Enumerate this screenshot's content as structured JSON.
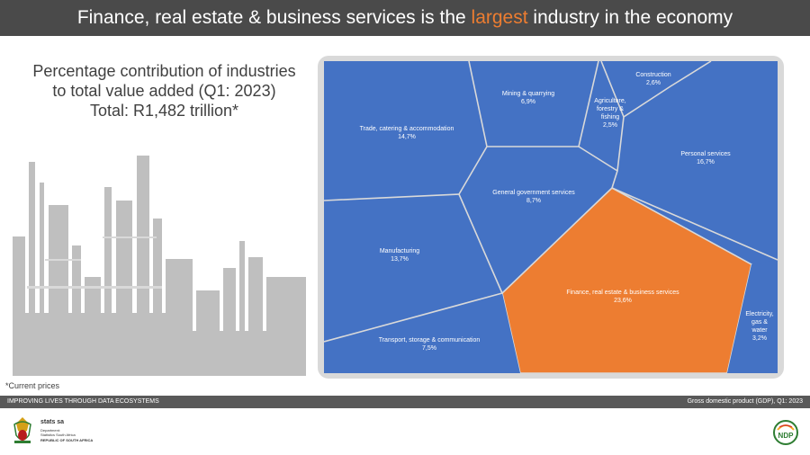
{
  "header": {
    "title_pre": "Finance, real estate & business services is the ",
    "title_highlight": "largest",
    "title_post": " industry in the economy"
  },
  "subtitle": {
    "line1": "Percentage contribution of industries",
    "line2": "to total value added (Q1: 2023)",
    "line3": "Total: R1,482 trillion*"
  },
  "chart_data": {
    "type": "voronoi-treemap",
    "title": "Percentage contribution of industries to total value added (Q1: 2023)",
    "total": "R1,482 trillion",
    "categories": [
      {
        "name": "Trade, catering & accommodation",
        "value": 14.7,
        "label_lines": [
          "Trade, catering & accommodation",
          "14,7%"
        ]
      },
      {
        "name": "Mining & quarrying",
        "value": 6.9,
        "label_lines": [
          "Mining & quarrying",
          "6,9%"
        ]
      },
      {
        "name": "Agriculture, forestry & fishing",
        "value": 2.5,
        "label_lines": [
          "Agriculture,",
          "forestry &",
          "fishing",
          "2,5%"
        ]
      },
      {
        "name": "Construction",
        "value": 2.6,
        "label_lines": [
          "Construction",
          "2,6%"
        ]
      },
      {
        "name": "Personal services",
        "value": 16.7,
        "label_lines": [
          "Personal services",
          "16,7%"
        ]
      },
      {
        "name": "General government services",
        "value": 8.7,
        "label_lines": [
          "General government services",
          "8,7%"
        ]
      },
      {
        "name": "Manufacturing",
        "value": 13.7,
        "label_lines": [
          "Manufacturing",
          "13,7%"
        ]
      },
      {
        "name": "Finance, real estate & business services",
        "value": 23.6,
        "label_lines": [
          "Finance, real estate & business services",
          "23,6%"
        ],
        "highlight": true
      },
      {
        "name": "Transport, storage & communication",
        "value": 7.5,
        "label_lines": [
          "Transport, storage & communication",
          "7,5%"
        ]
      },
      {
        "name": "Electricity, gas & water",
        "value": 3.2,
        "label_lines": [
          "Electricity,",
          "gas &",
          "water",
          "3,2%"
        ]
      }
    ],
    "colors": {
      "default": "#4472C4",
      "highlight": "#ED7D31",
      "border": "#d9d9d9"
    }
  },
  "footnote": "*Current prices",
  "footer": {
    "left": "IMPROVING LIVES THROUGH DATA ECOSYSTEMS",
    "right": "Gross domestic product (GDP), Q1: 2023"
  },
  "brand": {
    "name": "stats sa",
    "dept_line1": "Department:",
    "dept_line2": "Statistics South Africa",
    "country": "REPUBLIC OF SOUTH AFRICA",
    "ndp": "NDP"
  }
}
